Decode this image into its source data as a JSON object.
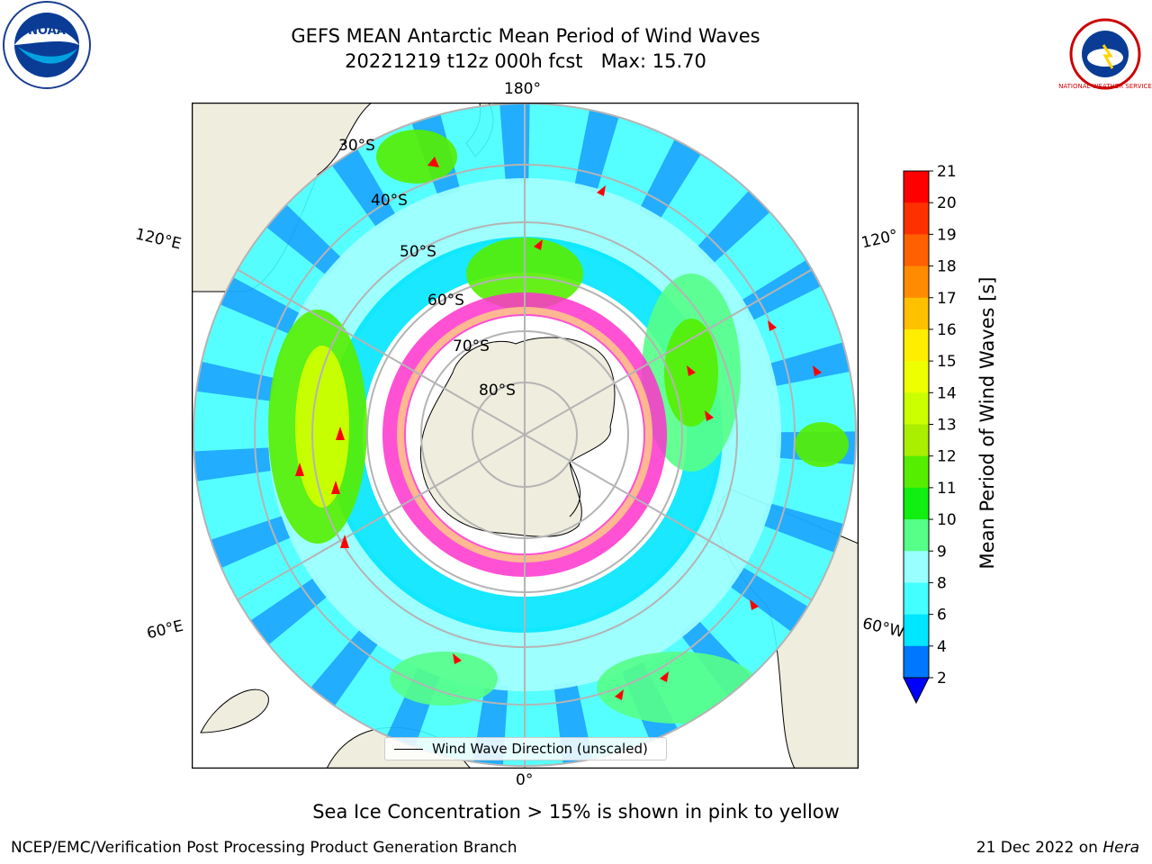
{
  "header": {
    "title_line1": "GEFS MEAN Antarctic Mean Period of Wind Waves",
    "title_line2": "20221219 t12z 000h fcst   Max: 15.70"
  },
  "map": {
    "projection": "South Polar Stereographic",
    "longitude_labels": {
      "top": "180°",
      "left": "120°E",
      "right": "120°",
      "bottom_left": "60°E",
      "bottom_right": "60°W",
      "bottom": "0°"
    },
    "latitude_labels": [
      "30°S",
      "40°S",
      "50°S",
      "60°S",
      "70°S",
      "80°S"
    ],
    "legend_label": "Wind Wave Direction (unscaled)",
    "colors": {
      "land": "#efedde",
      "ocean": "#ffffff",
      "grid": "#b4b4b4",
      "direction_arrows": "#ff0000",
      "sea_ice": "#ff33cc"
    }
  },
  "colorbar": {
    "label": "Mean Period of Wind Waves [s]",
    "ticks": [
      "2",
      "4",
      "6",
      "8",
      "9",
      "10",
      "11",
      "12",
      "13",
      "14",
      "15",
      "16",
      "17",
      "18",
      "19",
      "20",
      "21"
    ],
    "colors": [
      "#0000ff",
      "#0077ff",
      "#00e6ff",
      "#44ffff",
      "#99ffff",
      "#55ff88",
      "#11ee11",
      "#55ee00",
      "#aaee00",
      "#ccff00",
      "#eeff00",
      "#ffee00",
      "#ffc000",
      "#ff8c00",
      "#ff6000",
      "#ff3000",
      "#ff0000"
    ],
    "extend": "min"
  },
  "notes": {
    "ice": "Sea Ice Concentration > 15% is shown in pink to yellow"
  },
  "footer": {
    "left": "NCEP/EMC/Verification Post Processing Product Generation Branch",
    "date": "21 Dec 2022 on ",
    "machine": "Hera"
  },
  "logos": {
    "left": "NOAA",
    "right": "NATIONAL WEATHER SERVICE"
  }
}
